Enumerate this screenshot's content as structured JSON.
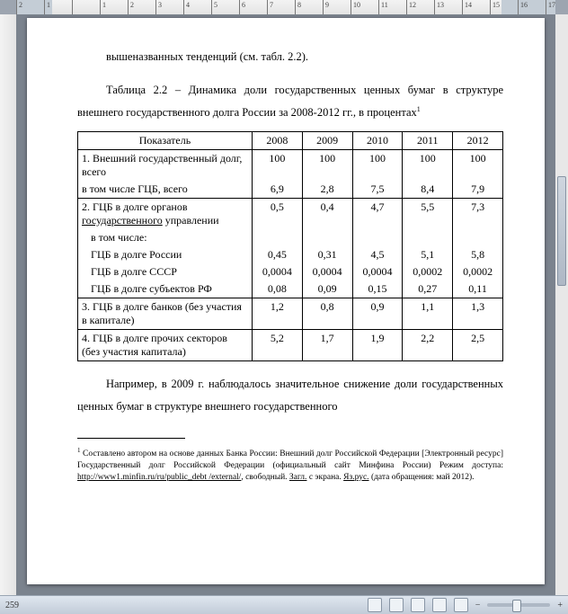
{
  "ruler": {
    "labels": [
      "2",
      "1",
      "",
      "1",
      "2",
      "3",
      "4",
      "5",
      "6",
      "7",
      "8",
      "9",
      "10",
      "11",
      "12",
      "13",
      "14",
      "15",
      "16",
      "17"
    ]
  },
  "statusbar": {
    "page_label": "259",
    "zoom_pct": ""
  },
  "doc": {
    "top_fragment": "вышеназванных тенденций (см. табл. 2.2).",
    "caption": "Таблица 2.2 – Динамика доли государственных ценных бумаг в структуре внешнего государственного долга России за 2008-2012 гг., в процентах",
    "caption_footnote_mark": "1",
    "body_para": "Например, в 2009 г. наблюдалось значительное снижение доли государственных ценных бумаг в структуре внешнего государственного",
    "footnote": {
      "mark": "1",
      "text_a": "Составлено автором на основе данных Банка России: Внешний долг Российской Федерации [Электронный ресурс] Государственный долг Российской Федерации (официальный сайт Минфина России) Режим доступа: ",
      "link": "http://www1.minfin.ru/ru/public_debt /external/",
      "text_b": ", свободный. ",
      "zagl": "Загл.",
      "text_c": " с экрана. ",
      "lang": "Яз.рус.",
      "text_d": " (дата обращения: май 2012)."
    }
  },
  "table": {
    "header": [
      "Показатель",
      "2008",
      "2009",
      "2010",
      "2011",
      "2012"
    ],
    "col_widths_pct": [
      41,
      11.8,
      11.8,
      11.8,
      11.8,
      11.8
    ],
    "rows": [
      {
        "label": "1. Внешний государственный долг, всего",
        "vals": [
          "100",
          "100",
          "100",
          "100",
          "100"
        ],
        "cls": ""
      },
      {
        "label": "в том числе ГЦБ, всего",
        "vals": [
          "6,9",
          "2,8",
          "7,5",
          "8,4",
          "7,9"
        ],
        "cls": "sep-after"
      },
      {
        "label": "2. ГЦБ в долге органов <span class=\"u\">государственного</span> управлении",
        "vals": [
          "0,5",
          "0,4",
          "4,7",
          "5,5",
          "7,3"
        ],
        "cls": ""
      },
      {
        "label": "  в том числе:",
        "vals": [
          "",
          "",
          "",
          "",
          ""
        ],
        "cls": "sub"
      },
      {
        "label": "  ГЦБ в долге России",
        "vals": [
          "0,45",
          "0,31",
          "4,5",
          "5,1",
          "5,8"
        ],
        "cls": "sub"
      },
      {
        "label": "  ГЦБ в долге СССР",
        "vals": [
          "0,0004",
          "0,0004",
          "0,0004",
          "0,0002",
          "0,0002"
        ],
        "cls": "sub"
      },
      {
        "label": "  ГЦБ в долге субъектов РФ",
        "vals": [
          "0,08",
          "0,09",
          "0,15",
          "0,27",
          "0,11"
        ],
        "cls": "sub sep-after"
      },
      {
        "label": "3. ГЦБ в долге банков (без участия в капитале)",
        "vals": [
          "1,2",
          "0,8",
          "0,9",
          "1,1",
          "1,3"
        ],
        "cls": "sep-after"
      },
      {
        "label": "4. ГЦБ в долге прочих секторов (без участия капитала)",
        "vals": [
          "5,2",
          "1,7",
          "1,9",
          "2,2",
          "2,5"
        ],
        "cls": ""
      }
    ],
    "merge_groups": [
      [
        0,
        1
      ],
      [
        2,
        3,
        4,
        5,
        6
      ],
      [
        7
      ],
      [
        8
      ]
    ]
  },
  "colors": {
    "page_bg": "#ffffff",
    "workspace_bg": "#7b838e",
    "ruler_bg": "#e8e8e8",
    "table_border": "#000000"
  }
}
